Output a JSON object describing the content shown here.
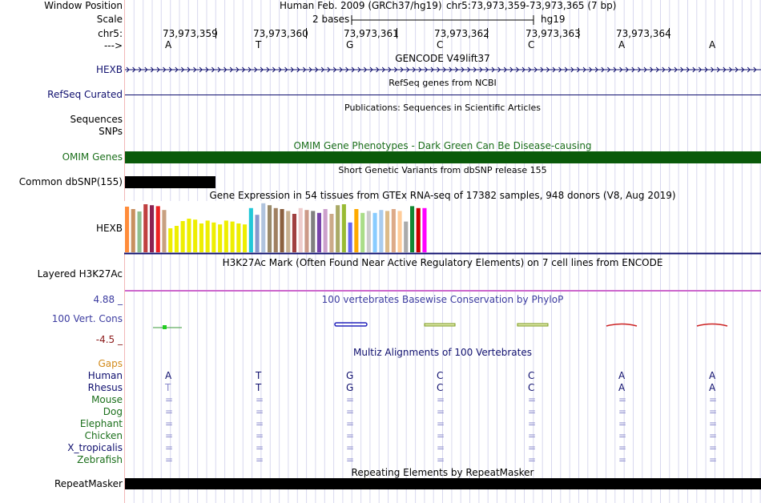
{
  "header": {
    "window_position_label": "Window Position",
    "assembly": "Human Feb. 2009 (GRCh37/hg19)",
    "position": "chr5:73,973,359-73,973,365 (7 bp)",
    "scale_label": "Scale",
    "scale_value": "2 bases",
    "scale_db": "hg19",
    "chrom_label": "chr5:",
    "strand_label": "--->",
    "coords": [
      "73,973,359",
      "73,973,360",
      "73,973,361",
      "73,973,362",
      "73,973,363",
      "73,973,364"
    ],
    "bases": [
      "A",
      "T",
      "G",
      "C",
      "C",
      "A",
      "A"
    ]
  },
  "tracks": {
    "gencode": {
      "title": "GENCODE V49lift37",
      "label": "HEXB"
    },
    "refseq": {
      "title": "RefSeq genes from NCBI",
      "label": "RefSeq Curated"
    },
    "publications": {
      "title": "Publications: Sequences in Scientific Articles",
      "label_seq": "Sequences",
      "label_snp": "SNPs"
    },
    "omim": {
      "title": "OMIM Gene Phenotypes - Dark Green Can Be Disease-causing",
      "label": "OMIM Genes",
      "color": "#0a5a0a"
    },
    "dbsnp": {
      "title": "Short Genetic Variants from dbSNP release 155",
      "label": "Common dbSNP(155)"
    },
    "gtex": {
      "title": "Gene Expression in 54 tissues from GTEx RNA-seq of 17382 samples, 948 donors (V8, Aug 2019)",
      "label": "HEXB",
      "bars": [
        {
          "value": 0.95,
          "color": "#ff8c3a"
        },
        {
          "value": 0.9,
          "color": "#c89060"
        },
        {
          "value": 0.85,
          "color": "#8fbf8f"
        },
        {
          "value": 1.0,
          "color": "#c04040"
        },
        {
          "value": 0.98,
          "color": "#8b2252"
        },
        {
          "value": 0.96,
          "color": "#ee2222"
        },
        {
          "value": 0.88,
          "color": "#c8a080"
        },
        {
          "value": 0.5,
          "color": "#eeee00"
        },
        {
          "value": 0.55,
          "color": "#eeee00"
        },
        {
          "value": 0.65,
          "color": "#eeee00"
        },
        {
          "value": 0.7,
          "color": "#eeee00"
        },
        {
          "value": 0.68,
          "color": "#eeee00"
        },
        {
          "value": 0.6,
          "color": "#eeee00"
        },
        {
          "value": 0.66,
          "color": "#eeee00"
        },
        {
          "value": 0.62,
          "color": "#eeee00"
        },
        {
          "value": 0.58,
          "color": "#eeee00"
        },
        {
          "value": 0.66,
          "color": "#eeee00"
        },
        {
          "value": 0.64,
          "color": "#eeee00"
        },
        {
          "value": 0.6,
          "color": "#eeee00"
        },
        {
          "value": 0.58,
          "color": "#eeee00"
        },
        {
          "value": 0.92,
          "color": "#22c8d8"
        },
        {
          "value": 0.78,
          "color": "#8898cc"
        },
        {
          "value": 1.02,
          "color": "#b0c4de"
        },
        {
          "value": 0.98,
          "color": "#9a8a6a"
        },
        {
          "value": 0.92,
          "color": "#a08060"
        },
        {
          "value": 0.9,
          "color": "#8b6040"
        },
        {
          "value": 0.86,
          "color": "#c8b090"
        },
        {
          "value": 0.8,
          "color": "#a04040"
        },
        {
          "value": 0.92,
          "color": "#eecccc"
        },
        {
          "value": 0.88,
          "color": "#cc9988"
        },
        {
          "value": 0.86,
          "color": "#808080"
        },
        {
          "value": 0.82,
          "color": "#7744aa"
        },
        {
          "value": 0.9,
          "color": "#cca0cc"
        },
        {
          "value": 0.8,
          "color": "#ccaa88"
        },
        {
          "value": 0.98,
          "color": "#aaaa66"
        },
        {
          "value": 1.0,
          "color": "#99bb33"
        },
        {
          "value": 0.62,
          "color": "#6666ee"
        },
        {
          "value": 0.9,
          "color": "#ffaa00"
        },
        {
          "value": 0.82,
          "color": "#aadd88"
        },
        {
          "value": 0.86,
          "color": "#cccccc"
        },
        {
          "value": 0.82,
          "color": "#88ccff"
        },
        {
          "value": 0.88,
          "color": "#aaccee"
        },
        {
          "value": 0.86,
          "color": "#ddbb88"
        },
        {
          "value": 0.9,
          "color": "#ddaa88"
        },
        {
          "value": 0.86,
          "color": "#ffcc99"
        },
        {
          "value": 0.64,
          "color": "#aaaaaa"
        },
        {
          "value": 0.96,
          "color": "#118833"
        },
        {
          "value": 0.92,
          "color": "#cc0000"
        },
        {
          "value": 0.92,
          "color": "#ff00ff"
        }
      ]
    },
    "h3k27ac": {
      "title": "H3K27Ac Mark (Often Found Near Active Regulatory Elements) on 7 cell lines from ENCODE",
      "label": "Layered H3K27Ac"
    },
    "phylop": {
      "title": "100 vertebrates Basewise Conservation by PhyloP",
      "label": "100 Vert. Cons",
      "max": "4.88 _",
      "min": "-4.5 _"
    },
    "multiz": {
      "title": "Multiz Alignments of 100 Vertebrates",
      "gaps_label": "Gaps",
      "species": [
        {
          "name": "Human",
          "seq": [
            "A",
            "T",
            "G",
            "C",
            "C",
            "A",
            "A"
          ]
        },
        {
          "name": "Rhesus",
          "seq": [
            "T",
            "T",
            "G",
            "C",
            "C",
            "A",
            "A"
          ]
        },
        {
          "name": "Mouse",
          "seq": [
            "=",
            "=",
            "=",
            "=",
            "=",
            "=",
            "="
          ]
        },
        {
          "name": "Dog",
          "seq": [
            "=",
            "=",
            "=",
            "=",
            "=",
            "=",
            "="
          ]
        },
        {
          "name": "Elephant",
          "seq": [
            "=",
            "=",
            "=",
            "=",
            "=",
            "=",
            "="
          ]
        },
        {
          "name": "Chicken",
          "seq": [
            "=",
            "=",
            "=",
            "=",
            "=",
            "=",
            "="
          ]
        },
        {
          "name": "X_tropicalis",
          "seq": [
            "=",
            "=",
            "=",
            "=",
            "=",
            "=",
            "="
          ]
        },
        {
          "name": "Zebrafish",
          "seq": [
            "=",
            "=",
            "=",
            "=",
            "=",
            "=",
            "="
          ]
        }
      ]
    },
    "repeatmasker": {
      "title": "Repeating Elements by RepeatMasker",
      "label": "RepeatMasker"
    }
  }
}
